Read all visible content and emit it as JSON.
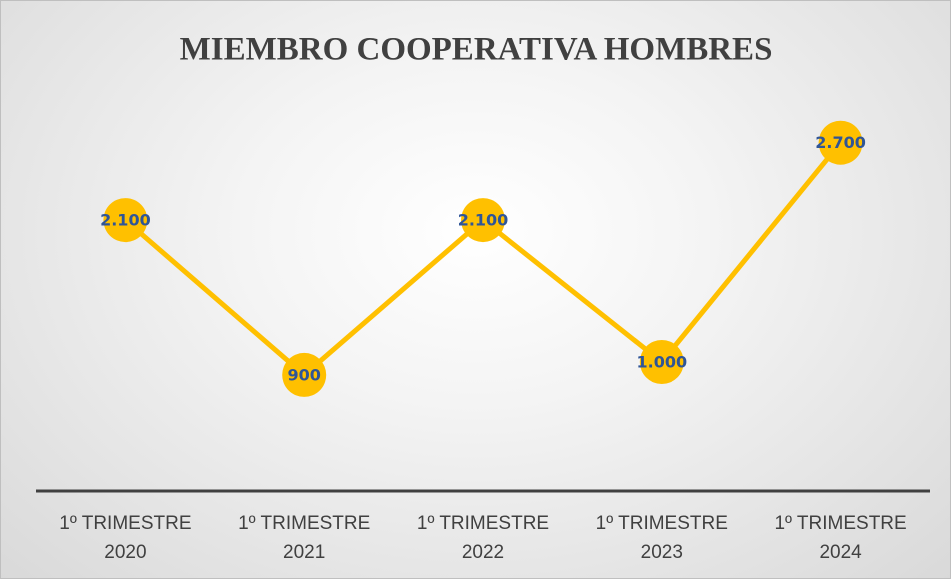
{
  "chart_data": {
    "type": "line",
    "title": "MIEMBRO COOPERATIVA HOMBRES",
    "categories": [
      "1º TRIMESTRE 2020",
      "1º TRIMESTRE 2021",
      "1º TRIMESTRE 2022",
      "1º TRIMESTRE 2023",
      "1º TRIMESTRE 2024"
    ],
    "values": [
      2100,
      900,
      2100,
      1000,
      2700
    ],
    "value_labels": [
      "2.100",
      "900",
      "2.100",
      "1.000",
      "2.700"
    ],
    "color": "#ffc000",
    "label_color": "#2f5597",
    "ylim": [
      0,
      3000
    ]
  }
}
